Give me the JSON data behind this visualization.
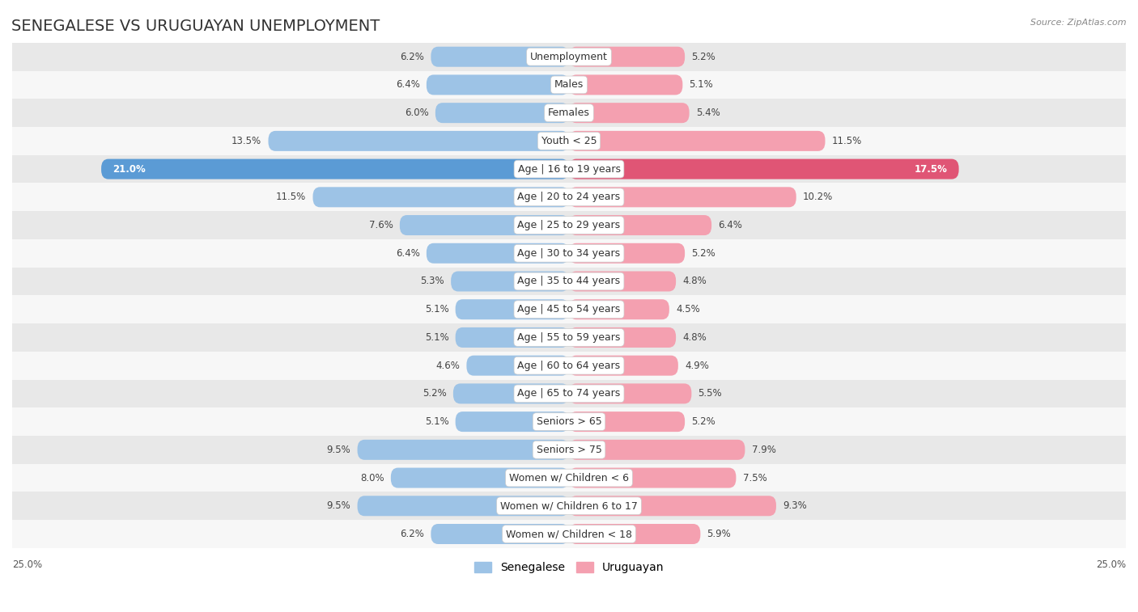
{
  "title": "SENEGALESE VS URUGUAYAN UNEMPLOYMENT",
  "source": "Source: ZipAtlas.com",
  "categories": [
    "Unemployment",
    "Males",
    "Females",
    "Youth < 25",
    "Age | 16 to 19 years",
    "Age | 20 to 24 years",
    "Age | 25 to 29 years",
    "Age | 30 to 34 years",
    "Age | 35 to 44 years",
    "Age | 45 to 54 years",
    "Age | 55 to 59 years",
    "Age | 60 to 64 years",
    "Age | 65 to 74 years",
    "Seniors > 65",
    "Seniors > 75",
    "Women w/ Children < 6",
    "Women w/ Children 6 to 17",
    "Women w/ Children < 18"
  ],
  "senegalese": [
    6.2,
    6.4,
    6.0,
    13.5,
    21.0,
    11.5,
    7.6,
    6.4,
    5.3,
    5.1,
    5.1,
    4.6,
    5.2,
    5.1,
    9.5,
    8.0,
    9.5,
    6.2
  ],
  "uruguayan": [
    5.2,
    5.1,
    5.4,
    11.5,
    17.5,
    10.2,
    6.4,
    5.2,
    4.8,
    4.5,
    4.8,
    4.9,
    5.5,
    5.2,
    7.9,
    7.5,
    9.3,
    5.9
  ],
  "senegalese_color": "#9dc3e6",
  "uruguayan_color": "#f4a0b0",
  "highlight_senegalese_color": "#5b9bd5",
  "highlight_uruguayan_color": "#e05575",
  "row_bg_light": "#e8e8e8",
  "row_bg_white": "#f7f7f7",
  "axis_limit": 25.0,
  "title_fontsize": 14,
  "label_fontsize": 9,
  "value_fontsize": 8.5
}
